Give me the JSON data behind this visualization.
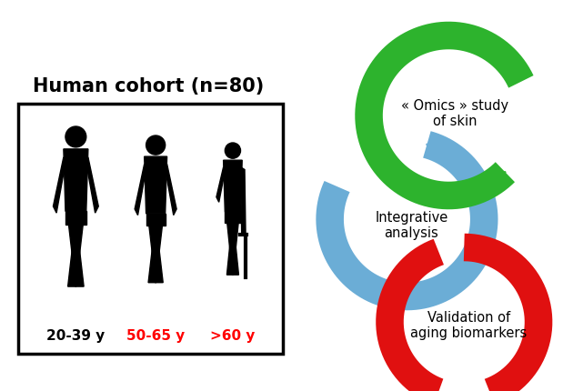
{
  "title": "Human cohort (n=80)",
  "title_fontsize": 15,
  "title_fontweight": "bold",
  "age_labels": [
    "20-39 y",
    "50-65 y",
    ">60 y"
  ],
  "age_colors": [
    "black",
    "red",
    "red"
  ],
  "background_color": "#ffffff",
  "green_color": "#2db32d",
  "blue_color": "#6badd6",
  "red_color": "#e01010",
  "omics_text": "« Omics » study\nof skin",
  "integrative_text": "Integrative\nanalysis",
  "validation_text": "Validation of\naging biomarkers",
  "lw": 22
}
